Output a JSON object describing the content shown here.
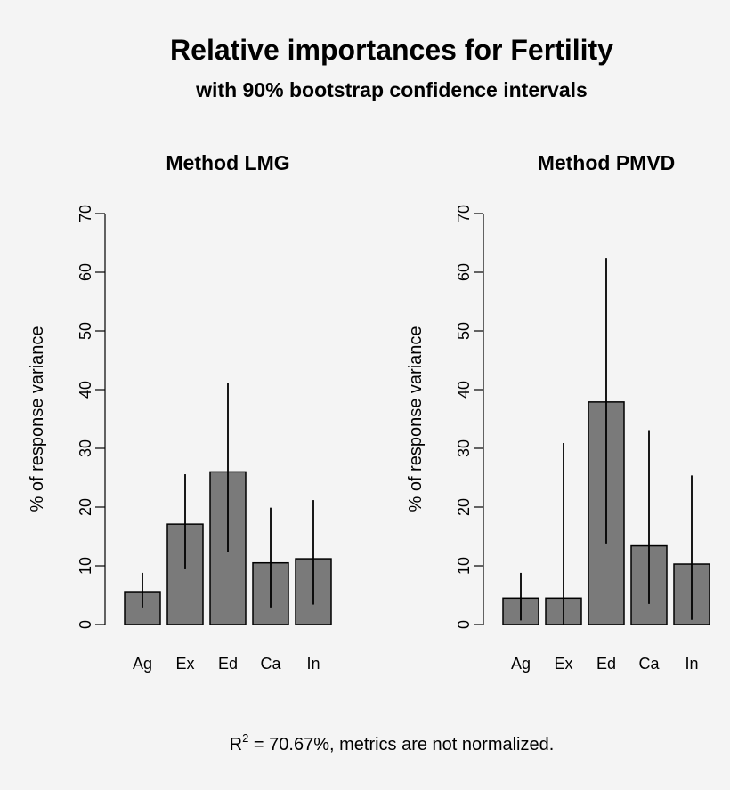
{
  "figure": {
    "title": "Relative importances for Fertility",
    "subtitle": "with 90% bootstrap confidence intervals",
    "footnote": {
      "r": "R",
      "sup": "2",
      "rest": " = 70.67%, metrics are not normalized."
    }
  },
  "colors": {
    "bar_fill": "#7a7a7a",
    "stroke": "#000000",
    "background": "#f4f4f4"
  },
  "chart_data": [
    {
      "type": "bar",
      "title": "Method LMG",
      "xlabel": "",
      "ylabel": "% of response variance",
      "categories": [
        "Ag",
        "Ex",
        "Ed",
        "Ca",
        "In"
      ],
      "values": [
        5.6,
        17.1,
        26.0,
        10.5,
        11.2
      ],
      "ci_lower": [
        2.9,
        9.4,
        12.4,
        2.9,
        3.4
      ],
      "ci_upper": [
        8.8,
        25.6,
        41.2,
        19.9,
        21.2
      ],
      "ylim": [
        0,
        70
      ],
      "yticks": [
        0,
        10,
        20,
        30,
        40,
        50,
        60,
        70
      ]
    },
    {
      "type": "bar",
      "title": "Method PMVD",
      "xlabel": "",
      "ylabel": "% of response variance",
      "categories": [
        "Ag",
        "Ex",
        "Ed",
        "Ca",
        "In"
      ],
      "values": [
        4.5,
        4.5,
        37.9,
        13.4,
        10.3
      ],
      "ci_lower": [
        0.7,
        0.0,
        13.8,
        3.5,
        0.8
      ],
      "ci_upper": [
        8.8,
        30.9,
        62.4,
        33.1,
        25.4
      ],
      "ylim": [
        0,
        70
      ],
      "yticks": [
        0,
        10,
        20,
        30,
        40,
        50,
        60,
        70
      ]
    }
  ]
}
